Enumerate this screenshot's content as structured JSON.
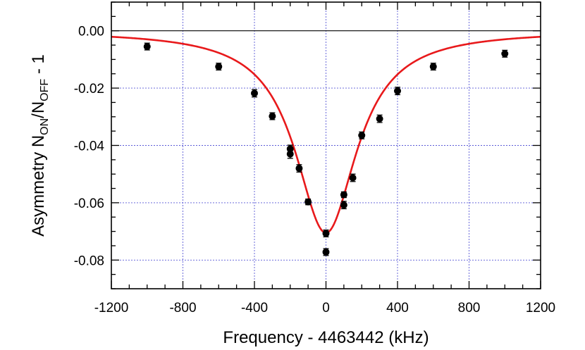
{
  "chart_data": {
    "type": "scatter",
    "xlabel": "Frequency - 4463442 (kHz)",
    "ylabel": {
      "base": "Asymmetry N",
      "sub1": "ON",
      "mid": "/N",
      "sub2": "OFF",
      "tail": " - 1"
    },
    "xlim": [
      -1200,
      1200
    ],
    "ylim": [
      -0.09,
      0.01
    ],
    "x_ticks": [
      -1200,
      -800,
      -400,
      0,
      400,
      800,
      1200
    ],
    "x_tick_labels": [
      "-1200",
      "-800",
      "-400",
      "0",
      "400",
      "800",
      "1200"
    ],
    "y_ticks": [
      0.0,
      -0.02,
      -0.04,
      -0.06,
      -0.08
    ],
    "y_tick_labels": [
      "0.00",
      "-0.02",
      "-0.04",
      "-0.06",
      "-0.08"
    ],
    "grid": true,
    "zero_line": true,
    "series": [
      {
        "kind": "data",
        "color": "#000000",
        "points": [
          {
            "x": -1000,
            "y": -0.0055,
            "err": 0.0012
          },
          {
            "x": -600,
            "y": -0.0125,
            "err": 0.0012
          },
          {
            "x": -400,
            "y": -0.0218,
            "err": 0.0013
          },
          {
            "x": -300,
            "y": -0.0298,
            "err": 0.0012
          },
          {
            "x": -200,
            "y": -0.0412,
            "err": 0.0013
          },
          {
            "x": -200,
            "y": -0.043,
            "err": 0.0015
          },
          {
            "x": -150,
            "y": -0.048,
            "err": 0.0013
          },
          {
            "x": -100,
            "y": -0.0597,
            "err": 0.001
          },
          {
            "x": 0,
            "y": -0.0707,
            "err": 0.0012
          },
          {
            "x": 0,
            "y": -0.0772,
            "err": 0.0012
          },
          {
            "x": 100,
            "y": -0.0572,
            "err": 0.001
          },
          {
            "x": 100,
            "y": -0.0608,
            "err": 0.0013
          },
          {
            "x": 150,
            "y": -0.0513,
            "err": 0.0013
          },
          {
            "x": 200,
            "y": -0.0365,
            "err": 0.0012
          },
          {
            "x": 300,
            "y": -0.0307,
            "err": 0.0013
          },
          {
            "x": 400,
            "y": -0.021,
            "err": 0.0013
          },
          {
            "x": 600,
            "y": -0.0125,
            "err": 0.0012
          },
          {
            "x": 1000,
            "y": -0.008,
            "err": 0.0012
          }
        ]
      },
      {
        "kind": "fit",
        "color": "#e8191b",
        "function": "lorentzian",
        "center": 0,
        "fwhm": 420,
        "depth": -0.0705
      }
    ]
  }
}
